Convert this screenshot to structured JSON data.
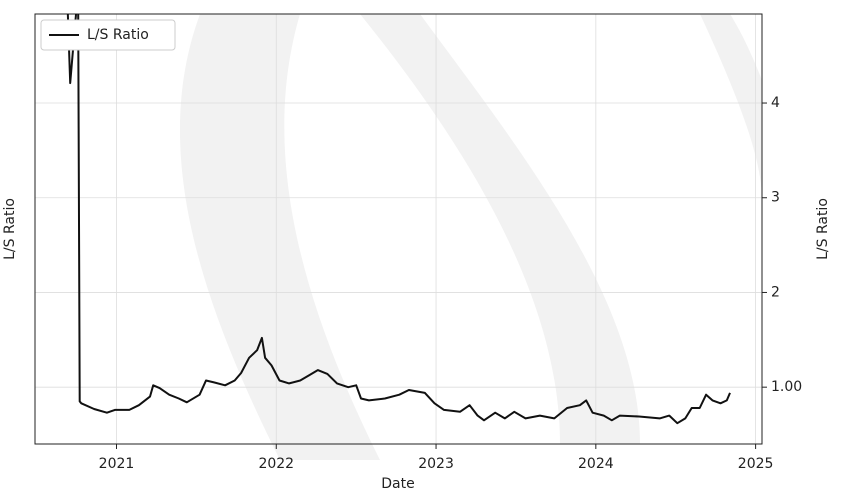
{
  "chart_data": {
    "type": "line",
    "xlabel": "Date",
    "ylabel": "L/S Ratio",
    "y2label": "L/S Ratio",
    "legend": "upper left",
    "grid": true,
    "xlim": [
      2020.49,
      2025.04
    ],
    "xticks": [
      2021,
      2022,
      2023,
      2024,
      2025
    ],
    "y2lim": [
      0.4,
      4.94
    ],
    "y2ticks": [
      {
        "value": 1,
        "label": "1.00"
      },
      2,
      3,
      4
    ],
    "x": [
      2020.69,
      2020.71,
      2020.76,
      2020.77,
      2020.78,
      2020.86,
      2020.94,
      2020.99,
      2021.08,
      2021.14,
      2021.21,
      2021.23,
      2021.27,
      2021.33,
      2021.39,
      2021.44,
      2021.52,
      2021.56,
      2021.61,
      2021.68,
      2021.74,
      2021.78,
      2021.83,
      2021.88,
      2021.91,
      2021.93,
      2021.97,
      2022.02,
      2022.08,
      2022.15,
      2022.21,
      2022.26,
      2022.32,
      2022.38,
      2022.45,
      2022.5,
      2022.53,
      2022.58,
      2022.68,
      2022.77,
      2022.83,
      2022.93,
      2022.99,
      2023.05,
      2023.15,
      2023.21,
      2023.26,
      2023.3,
      2023.37,
      2023.43,
      2023.49,
      2023.56,
      2023.65,
      2023.74,
      2023.82,
      2023.9,
      2023.94,
      2023.98,
      2024.05,
      2024.1,
      2024.15,
      2024.27,
      2024.4,
      2024.46,
      2024.51,
      2024.56,
      2024.6,
      2024.65,
      2024.69,
      2024.73,
      2024.78,
      2024.82,
      2024.84
    ],
    "series": [
      {
        "name": "L/S Ratio",
        "color": "#111111",
        "axis": "y2",
        "values": [
          5.2,
          4.21,
          5.2,
          0.85,
          0.83,
          0.77,
          0.73,
          0.76,
          0.76,
          0.81,
          0.9,
          1.02,
          0.99,
          0.92,
          0.88,
          0.84,
          0.92,
          1.07,
          1.05,
          1.02,
          1.07,
          1.15,
          1.31,
          1.39,
          1.52,
          1.31,
          1.23,
          1.07,
          1.04,
          1.07,
          1.13,
          1.18,
          1.14,
          1.04,
          1.0,
          1.02,
          0.88,
          0.86,
          0.88,
          0.92,
          0.97,
          0.94,
          0.83,
          0.76,
          0.74,
          0.81,
          0.7,
          0.65,
          0.73,
          0.67,
          0.74,
          0.67,
          0.7,
          0.67,
          0.78,
          0.81,
          0.86,
          0.73,
          0.7,
          0.65,
          0.7,
          0.69,
          0.67,
          0.7,
          0.62,
          0.67,
          0.78,
          0.78,
          0.92,
          0.86,
          0.83,
          0.86,
          0.94
        ]
      }
    ]
  }
}
